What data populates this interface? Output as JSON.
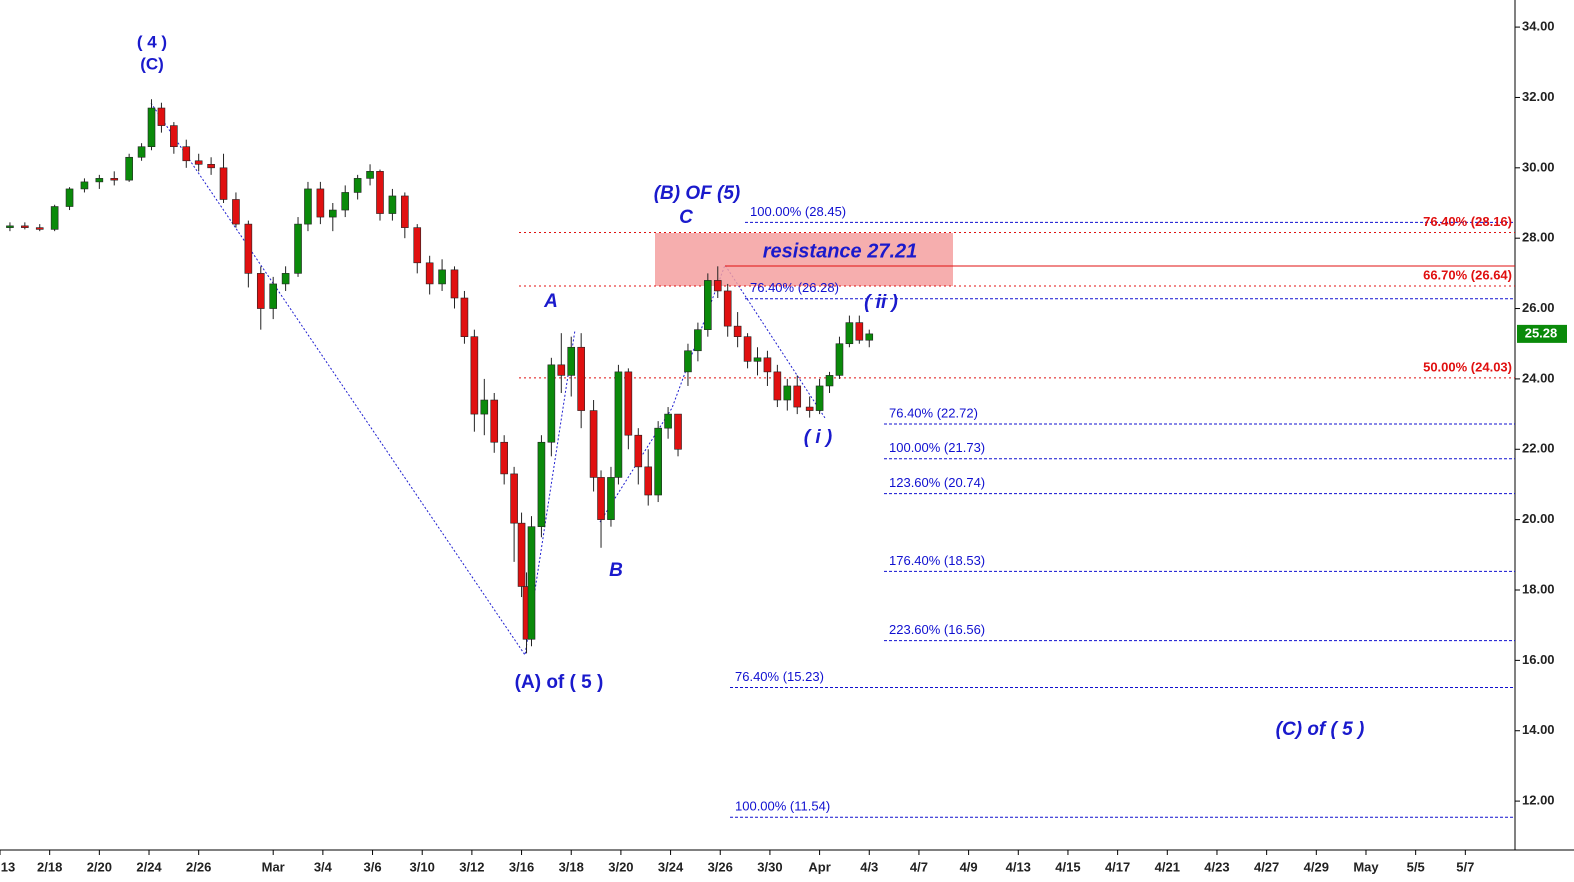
{
  "chart_data": {
    "type": "candlestick",
    "xlim": [
      -2,
      59
    ],
    "ylim": [
      10.61,
      34.77
    ],
    "xticks": [
      {
        "value": -2,
        "label": "13"
      },
      {
        "value": 0,
        "label": "2/18"
      },
      {
        "value": 2,
        "label": "2/20"
      },
      {
        "value": 4,
        "label": "2/24"
      },
      {
        "value": 6,
        "label": "2/26"
      },
      {
        "value": 9,
        "label": "Mar"
      },
      {
        "value": 11,
        "label": "3/4"
      },
      {
        "value": 13,
        "label": "3/6"
      },
      {
        "value": 15,
        "label": "3/10"
      },
      {
        "value": 17,
        "label": "3/12"
      },
      {
        "value": 19,
        "label": "3/16"
      },
      {
        "value": 21,
        "label": "3/18"
      },
      {
        "value": 23,
        "label": "3/20"
      },
      {
        "value": 25,
        "label": "3/24"
      },
      {
        "value": 27,
        "label": "3/26"
      },
      {
        "value": 29,
        "label": "3/30"
      },
      {
        "value": 31,
        "label": "Apr"
      },
      {
        "value": 33,
        "label": "4/3"
      },
      {
        "value": 35,
        "label": "4/7"
      },
      {
        "value": 37,
        "label": "4/9"
      },
      {
        "value": 39,
        "label": "4/13"
      },
      {
        "value": 41,
        "label": "4/15"
      },
      {
        "value": 43,
        "label": "4/17"
      },
      {
        "value": 45,
        "label": "4/21"
      },
      {
        "value": 47,
        "label": "4/23"
      },
      {
        "value": 49,
        "label": "4/27"
      },
      {
        "value": 51,
        "label": "4/29"
      },
      {
        "value": 53,
        "label": "May"
      },
      {
        "value": 55,
        "label": "5/5"
      },
      {
        "value": 57,
        "label": "5/7"
      }
    ],
    "yticks": [
      {
        "value": 12,
        "label": "12.00"
      },
      {
        "value": 14,
        "label": "14.00"
      },
      {
        "value": 16,
        "label": "16.00"
      },
      {
        "value": 18,
        "label": "18.00"
      },
      {
        "value": 20,
        "label": "20.00"
      },
      {
        "value": 22,
        "label": "22.00"
      },
      {
        "value": 24,
        "label": "24.00"
      },
      {
        "value": 26,
        "label": "26.00"
      },
      {
        "value": 28,
        "label": "28.00"
      },
      {
        "value": 30,
        "label": "30.00"
      },
      {
        "value": 32,
        "label": "32.00"
      },
      {
        "value": 34,
        "label": "34.00"
      }
    ],
    "up_color": "#0a8a0a",
    "down_color": "#e01010",
    "x": [
      -1.6,
      -1.0,
      -0.4,
      0.2,
      0.8,
      1.4,
      2.0,
      2.6,
      3.2,
      3.7,
      4.1,
      4.5,
      5.0,
      5.5,
      6.0,
      6.5,
      7.0,
      7.5,
      8.0,
      8.5,
      9.0,
      9.5,
      10.0,
      10.4,
      10.9,
      11.4,
      11.9,
      12.4,
      12.9,
      13.3,
      13.8,
      14.3,
      14.8,
      15.3,
      15.8,
      16.3,
      16.7,
      17.1,
      17.5,
      17.9,
      18.3,
      18.7,
      19.0,
      19.2,
      19.4,
      19.8,
      20.2,
      20.6,
      21.0,
      21.4,
      21.9,
      22.2,
      22.6,
      22.9,
      23.3,
      23.7,
      24.1,
      24.5,
      24.9,
      25.3,
      25.7,
      26.1,
      26.5,
      26.9,
      27.3,
      27.7,
      28.1,
      28.5,
      28.9,
      29.3,
      29.7,
      30.1,
      30.6,
      31.0,
      31.4,
      31.8,
      32.2,
      32.6,
      33.0
    ],
    "open": [
      28.3,
      28.35,
      28.3,
      28.25,
      28.9,
      29.4,
      29.6,
      29.7,
      29.65,
      30.3,
      30.6,
      31.7,
      31.2,
      30.6,
      30.2,
      30.1,
      30.0,
      29.1,
      28.4,
      27.0,
      26.0,
      26.7,
      27.0,
      28.4,
      29.4,
      28.6,
      28.8,
      29.3,
      29.7,
      29.9,
      28.7,
      29.2,
      28.3,
      27.3,
      26.7,
      27.1,
      26.3,
      25.2,
      23.0,
      23.4,
      22.2,
      21.3,
      19.9,
      18.1,
      16.6,
      19.8,
      22.2,
      24.4,
      24.1,
      24.9,
      23.1,
      21.2,
      20.0,
      21.2,
      24.2,
      22.4,
      21.5,
      20.7,
      22.6,
      23.0,
      24.2,
      24.8,
      25.4,
      26.8,
      26.5,
      25.5,
      25.2,
      24.5,
      24.6,
      24.2,
      23.4,
      23.8,
      23.2,
      23.1,
      23.8,
      24.1,
      25.0,
      25.6,
      25.1
    ],
    "high": [
      28.45,
      28.45,
      28.4,
      28.95,
      29.45,
      29.7,
      29.8,
      29.9,
      30.4,
      30.7,
      31.95,
      31.85,
      31.3,
      30.8,
      30.4,
      30.3,
      30.4,
      29.3,
      28.5,
      27.2,
      26.9,
      27.2,
      28.6,
      29.6,
      29.6,
      29.0,
      29.5,
      29.8,
      30.1,
      29.95,
      29.4,
      29.3,
      28.4,
      27.5,
      27.4,
      27.2,
      26.5,
      25.4,
      24.0,
      23.6,
      22.4,
      21.5,
      20.2,
      18.5,
      20.1,
      22.4,
      24.6,
      25.3,
      25.2,
      25.3,
      23.4,
      21.4,
      21.5,
      24.4,
      24.3,
      22.6,
      22.0,
      22.8,
      23.2,
      23.0,
      25.0,
      25.6,
      27.0,
      27.2,
      26.7,
      25.9,
      25.3,
      24.9,
      24.8,
      24.4,
      24.0,
      24.1,
      23.5,
      24.0,
      24.2,
      25.2,
      25.8,
      25.8,
      25.4
    ],
    "low": [
      28.2,
      28.25,
      28.2,
      28.2,
      28.8,
      29.3,
      29.4,
      29.5,
      29.6,
      30.2,
      30.5,
      31.0,
      30.4,
      30.0,
      29.9,
      29.8,
      29.0,
      28.3,
      26.6,
      25.4,
      25.7,
      26.5,
      26.9,
      28.2,
      28.4,
      28.2,
      28.6,
      29.1,
      29.5,
      28.5,
      28.5,
      28.0,
      27.0,
      26.4,
      26.5,
      26.0,
      25.0,
      22.5,
      22.4,
      21.9,
      21.0,
      18.8,
      17.8,
      16.2,
      16.4,
      19.5,
      21.8,
      23.6,
      23.5,
      22.6,
      20.8,
      19.2,
      19.8,
      21.0,
      22.0,
      21.0,
      20.4,
      20.5,
      22.3,
      21.8,
      23.8,
      24.5,
      25.2,
      26.3,
      25.2,
      24.9,
      24.3,
      24.1,
      23.8,
      23.2,
      23.1,
      23.0,
      22.9,
      23.0,
      23.6,
      24.0,
      24.9,
      25.0,
      24.9
    ],
    "close": [
      28.35,
      28.3,
      28.25,
      28.9,
      29.4,
      29.6,
      29.7,
      29.65,
      30.3,
      30.6,
      31.7,
      31.2,
      30.6,
      30.2,
      30.1,
      30.0,
      29.1,
      28.4,
      27.0,
      26.0,
      26.7,
      27.0,
      28.4,
      29.4,
      28.6,
      28.8,
      29.3,
      29.7,
      29.9,
      28.7,
      29.2,
      28.3,
      27.3,
      26.7,
      27.1,
      26.3,
      25.2,
      23.0,
      23.4,
      22.2,
      21.3,
      19.9,
      18.1,
      16.6,
      19.8,
      22.2,
      24.4,
      24.1,
      24.9,
      23.1,
      21.2,
      20.0,
      21.2,
      24.2,
      22.4,
      21.5,
      20.7,
      22.6,
      23.0,
      22.0,
      24.8,
      25.4,
      26.8,
      26.5,
      25.5,
      25.2,
      24.5,
      24.6,
      24.2,
      23.4,
      23.8,
      23.2,
      23.1,
      23.8,
      24.1,
      25.0,
      25.6,
      25.1,
      25.28
    ],
    "levels": [
      {
        "label": "100.00% (28.45)",
        "value": 28.45,
        "color": "#1010d0"
      },
      {
        "label": "76.40% (26.28)",
        "value": 26.28,
        "color": "#1010d0"
      },
      {
        "label": "76.40% (22.72)",
        "value": 22.72,
        "color": "#1010d0"
      },
      {
        "label": "100.00% (21.73)",
        "value": 21.73,
        "color": "#1010d0"
      },
      {
        "label": "123.60% (20.74)",
        "value": 20.74,
        "color": "#1010d0"
      },
      {
        "label": "176.40% (18.53)",
        "value": 18.53,
        "color": "#1010d0"
      },
      {
        "label": "223.60% (16.56)",
        "value": 16.56,
        "color": "#1010d0"
      },
      {
        "label": "76.40% (15.23)",
        "value": 15.23,
        "color": "#1010d0"
      },
      {
        "label": "100.00% (11.54)",
        "value": 11.54,
        "color": "#1010d0"
      },
      {
        "label": "76.40% (28.16)",
        "value": 28.16,
        "color": "#e01010"
      },
      {
        "label": "66.70% (26.64)",
        "value": 26.64,
        "color": "#e01010"
      },
      {
        "label": "50.00% (24.03)",
        "value": 24.03,
        "color": "#e01010"
      }
    ],
    "resistance": {
      "label": "resistance 27.21",
      "value": 27.21
    },
    "last_price": {
      "label": "25.28",
      "value": 25.28
    },
    "annotations": [
      "( 4 )",
      "(C)",
      "(B) OF (5)",
      "C",
      "A",
      "B",
      "(A) of ( 5 )",
      "( i )",
      "( ii )",
      "(C) of ( 5 )"
    ]
  }
}
